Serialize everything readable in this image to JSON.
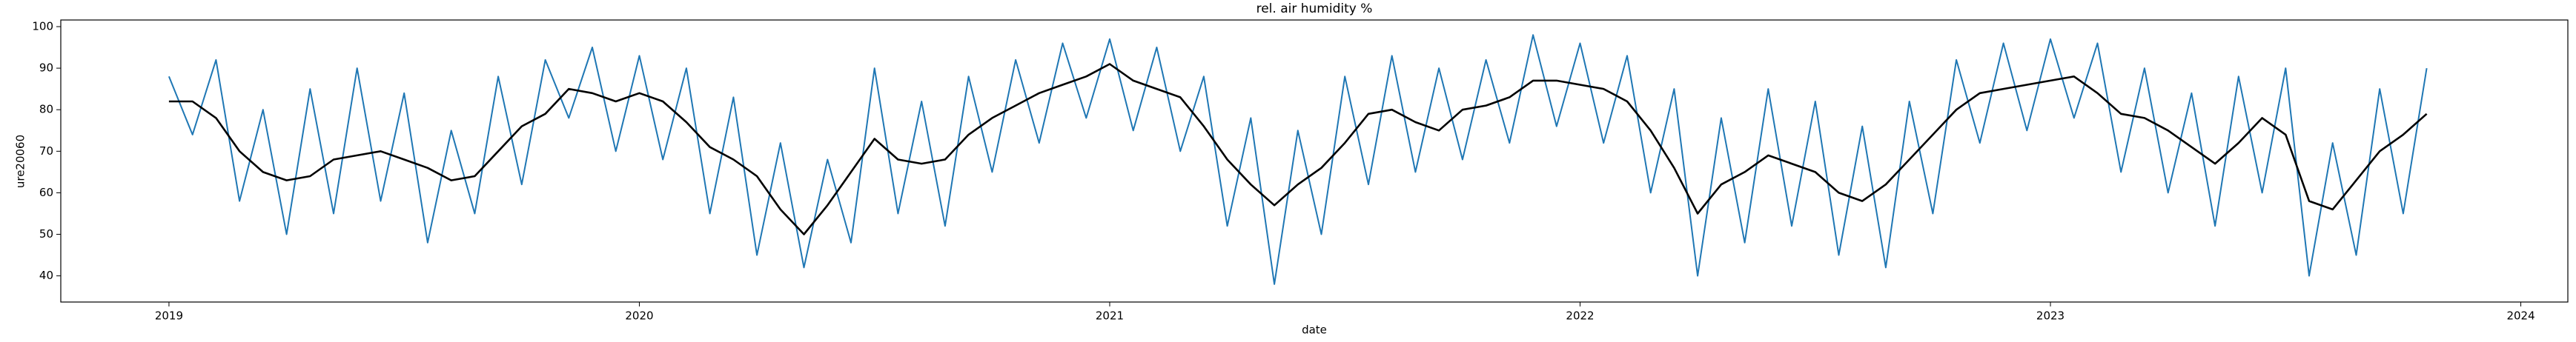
{
  "chart_data": {
    "type": "line",
    "title": "rel. air humidity %",
    "x_label": "date",
    "y_label": "ure20060",
    "x": [
      2019.0,
      2019.05,
      2019.1,
      2019.15,
      2019.2,
      2019.25,
      2019.3,
      2019.35,
      2019.4,
      2019.45,
      2019.5,
      2019.55,
      2019.6,
      2019.65,
      2019.7,
      2019.75,
      2019.8,
      2019.85,
      2019.9,
      2019.95,
      2020.0,
      2020.05,
      2020.1,
      2020.15,
      2020.2,
      2020.25,
      2020.3,
      2020.35,
      2020.4,
      2020.45,
      2020.5,
      2020.55,
      2020.6,
      2020.65,
      2020.7,
      2020.75,
      2020.8,
      2020.85,
      2020.9,
      2020.95,
      2021.0,
      2021.05,
      2021.1,
      2021.15,
      2021.2,
      2021.25,
      2021.3,
      2021.35,
      2021.4,
      2021.45,
      2021.5,
      2021.55,
      2021.6,
      2021.65,
      2021.7,
      2021.75,
      2021.8,
      2021.85,
      2021.9,
      2021.95,
      2022.0,
      2022.05,
      2022.1,
      2022.15,
      2022.2,
      2022.25,
      2022.3,
      2022.35,
      2022.4,
      2022.45,
      2022.5,
      2022.55,
      2022.6,
      2022.65,
      2022.7,
      2022.75,
      2022.8,
      2022.85,
      2022.9,
      2022.95,
      2023.0,
      2023.05,
      2023.1,
      2023.15,
      2023.2,
      2023.25,
      2023.3,
      2023.35,
      2023.4,
      2023.45,
      2023.5,
      2023.55,
      2023.6,
      2023.65,
      2023.7,
      2023.75,
      2023.8
    ],
    "series": [
      {
        "color": "#1f77b4",
        "width": 2,
        "values": [
          88,
          74,
          92,
          58,
          80,
          50,
          85,
          55,
          90,
          58,
          84,
          48,
          75,
          55,
          88,
          62,
          92,
          78,
          95,
          70,
          93,
          68,
          90,
          55,
          83,
          45,
          72,
          42,
          68,
          48,
          90,
          55,
          82,
          52,
          88,
          65,
          92,
          72,
          96,
          78,
          97,
          75,
          95,
          70,
          88,
          52,
          78,
          38,
          75,
          50,
          88,
          62,
          93,
          65,
          90,
          68,
          92,
          72,
          98,
          76,
          96,
          72,
          93,
          60,
          85,
          40,
          78,
          48,
          85,
          52,
          82,
          45,
          76,
          42,
          82,
          55,
          92,
          72,
          96,
          75,
          97,
          78,
          96,
          65,
          90,
          60,
          84,
          52,
          88,
          60,
          90,
          40,
          72,
          45,
          85,
          55,
          90
        ]
      },
      {
        "color": "#000000",
        "width": 2.6,
        "values": [
          82,
          82,
          78,
          70,
          65,
          63,
          64,
          68,
          69,
          70,
          68,
          66,
          63,
          64,
          70,
          76,
          79,
          85,
          84,
          82,
          84,
          82,
          77,
          71,
          68,
          64,
          56,
          50,
          57,
          65,
          73,
          68,
          67,
          68,
          74,
          78,
          81,
          84,
          86,
          88,
          91,
          87,
          85,
          83,
          76,
          68,
          62,
          57,
          62,
          66,
          72,
          79,
          80,
          77,
          75,
          80,
          81,
          83,
          87,
          87,
          86,
          85,
          82,
          75,
          66,
          55,
          62,
          65,
          69,
          67,
          65,
          60,
          58,
          62,
          68,
          74,
          80,
          84,
          85,
          86,
          87,
          88,
          84,
          79,
          78,
          75,
          71,
          67,
          72,
          78,
          74,
          58,
          56,
          63,
          70,
          74,
          79
        ]
      }
    ],
    "xlim": [
      2018.77,
      2024.1
    ],
    "ylim": [
      33.7,
      101.6
    ],
    "xticks": [
      2019,
      2020,
      2021,
      2022,
      2023,
      2024
    ],
    "yticks": [
      40,
      50,
      60,
      70,
      80,
      90,
      100
    ]
  }
}
